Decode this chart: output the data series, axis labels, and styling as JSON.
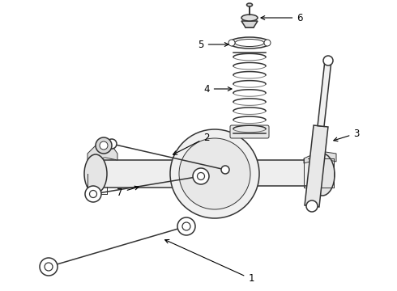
{
  "bg_color": "#ffffff",
  "line_color": "#333333",
  "label_color": "#000000",
  "figsize": [
    4.9,
    3.6
  ],
  "dpi": 100,
  "lw_main": 1.1,
  "lw_thin": 0.7,
  "font_size": 8.5
}
